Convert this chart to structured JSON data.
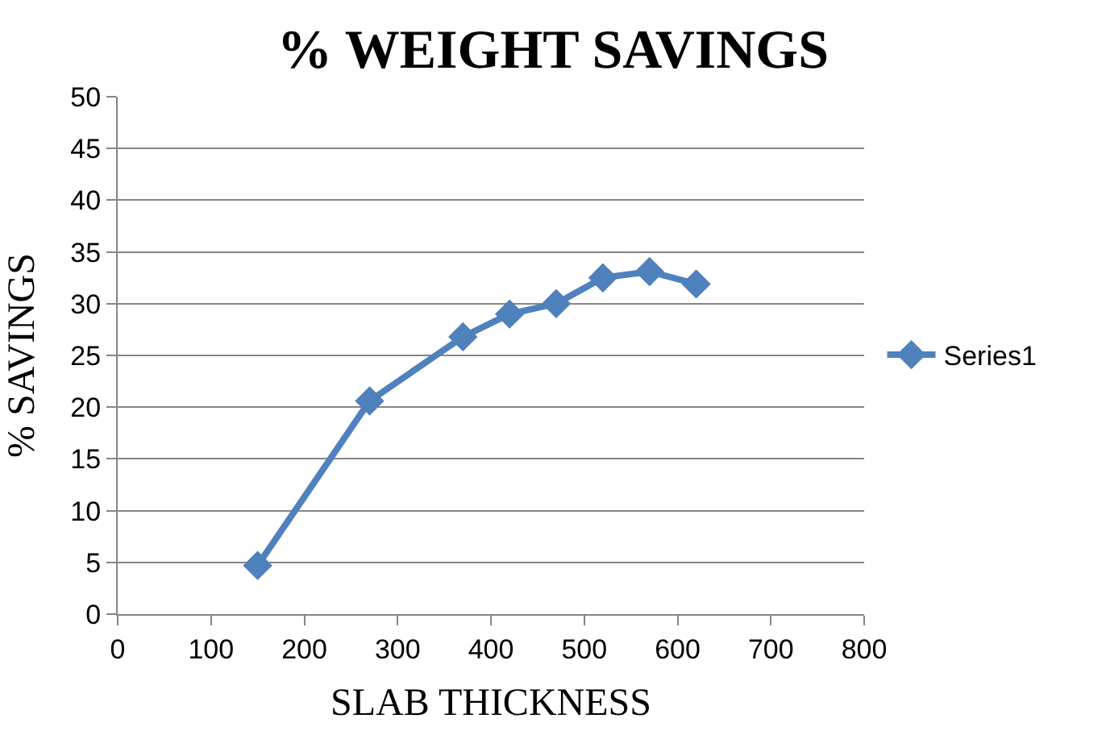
{
  "chart_data": {
    "type": "line",
    "title": "% WEIGHT SAVINGS",
    "xlabel": "SLAB THICKNESS",
    "ylabel": "% SAVINGS",
    "x": [
      150,
      270,
      370,
      420,
      470,
      520,
      570,
      620
    ],
    "series": [
      {
        "name": "Series1",
        "color": "#4f81bd",
        "values": [
          4.7,
          20.6,
          26.8,
          29.0,
          30.0,
          32.5,
          33.1,
          31.9
        ]
      }
    ],
    "xlim": [
      0,
      800
    ],
    "xticks": [
      0,
      100,
      200,
      300,
      400,
      500,
      600,
      700,
      800
    ],
    "ylim": [
      0,
      50
    ],
    "yticks": [
      0,
      5,
      10,
      15,
      20,
      25,
      30,
      35,
      40,
      45,
      50
    ],
    "grid": "y",
    "legend": "right",
    "marker": "diamond",
    "line_style": "solid"
  }
}
